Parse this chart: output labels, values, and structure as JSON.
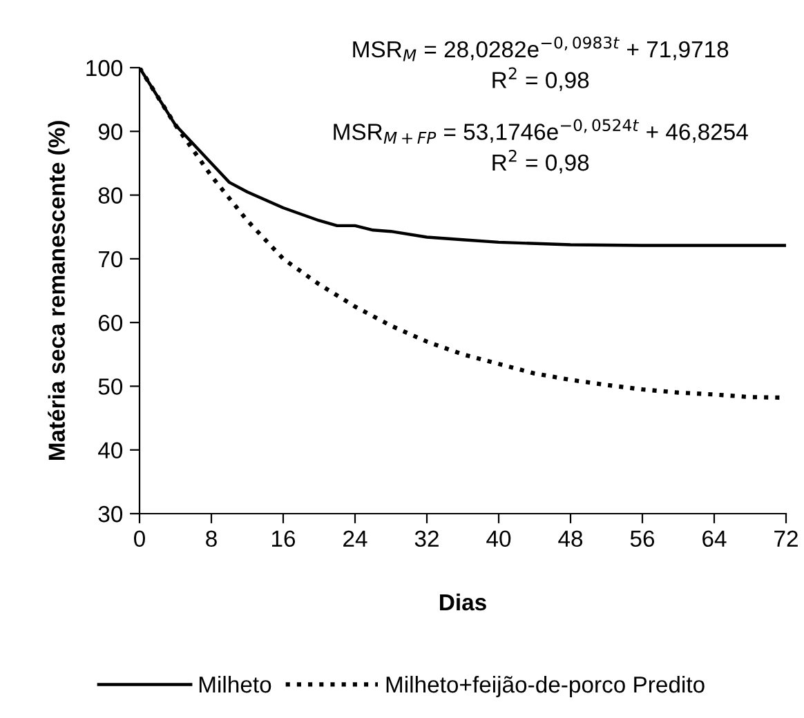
{
  "chart_data": {
    "type": "line",
    "xlabel": "Dias",
    "ylabel": "Matéria seca remanescente (%)",
    "xlim": [
      0,
      72
    ],
    "xticks": [
      0,
      8,
      16,
      24,
      32,
      40,
      48,
      56,
      64,
      72
    ],
    "ylim": [
      30,
      100
    ],
    "yticks": [
      30,
      40,
      50,
      60,
      70,
      80,
      90,
      100
    ],
    "grid": false,
    "legend": "bottom",
    "marker": "none",
    "series": [
      {
        "name": "Milheto",
        "color": "#000000",
        "line_style": "solid",
        "x": [
          0,
          4,
          8,
          10,
          12,
          16,
          20,
          22,
          24,
          26,
          28,
          32,
          36,
          40,
          48,
          56,
          72
        ],
        "values": [
          100,
          91,
          85,
          82,
          80.5,
          78,
          76,
          75.2,
          75.2,
          74.5,
          74.3,
          73.4,
          73,
          72.6,
          72.2,
          72.1,
          72.1
        ]
      },
      {
        "name": "Milheto+feijão-de-porco Predito",
        "color": "#000000",
        "line_style": "dotted",
        "x": [
          0,
          4,
          8,
          12,
          16,
          20,
          24,
          28,
          32,
          36,
          40,
          44,
          48,
          52,
          56,
          60,
          64,
          68,
          72
        ],
        "values": [
          100,
          91,
          83,
          76,
          70,
          66,
          62.5,
          59.5,
          57,
          55,
          53.5,
          52,
          51,
          50.2,
          49.5,
          49,
          48.7,
          48.3,
          48.2
        ]
      }
    ],
    "annotations": [
      "MSR$_{M}$ = 28,0282e$^{−0,0983t}$ + 71,9718",
      "R$^{2}$ = 0,98",
      "MSR$_{M+FP}$ = 53,1746e$^{−0,0524t}$ + 46,8254",
      "R$^{2}$ = 0,98"
    ]
  }
}
